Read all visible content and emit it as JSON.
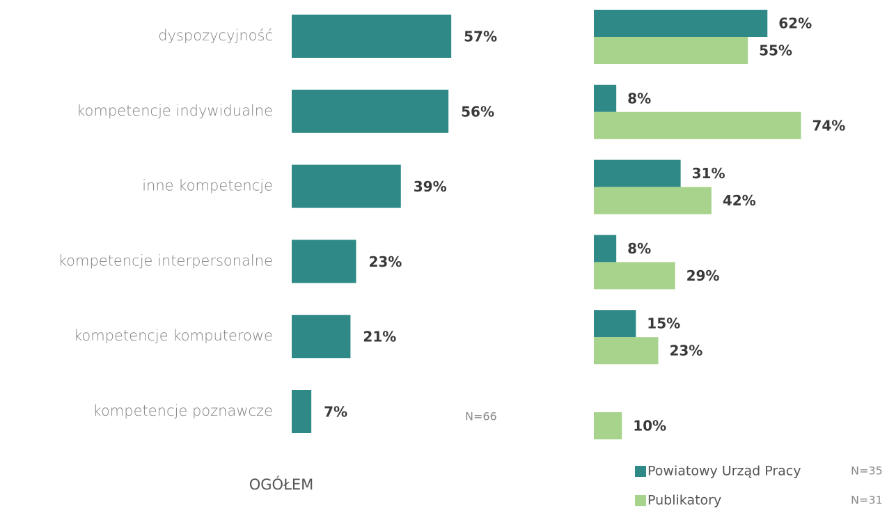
{
  "chart_data": [
    {
      "type": "hbar",
      "categories": [
        "dyspozycyjność",
        "kompetencje indywidualne",
        "inne kompetencje",
        "kompetencje interpersonalne",
        "kompetencje komputerowe",
        "kompetencje poznawcze"
      ],
      "values": [
        57,
        56,
        39,
        23,
        21,
        7
      ],
      "value_labels": [
        "57%",
        "56%",
        "39%",
        "23%",
        "21%",
        "7%"
      ],
      "color": "#2f8a87",
      "xlim": [
        0,
        100
      ],
      "note": "N=66",
      "caption": "OGÓŁEM"
    },
    {
      "type": "grouped-hbar",
      "xlim": [
        0,
        100
      ],
      "series": [
        {
          "name": "Powiatowy Urząd Pracy",
          "color": "#2f8a87",
          "sample": "N=35",
          "values": [
            62,
            8,
            31,
            8,
            15,
            null
          ],
          "value_labels": [
            "62%",
            "8%",
            "31%",
            "8%",
            "15%",
            null
          ]
        },
        {
          "name": "Publikatory",
          "color": "#a8d38c",
          "sample": "N=31",
          "values": [
            55,
            74,
            42,
            29,
            23,
            10
          ],
          "value_labels": [
            "55%",
            "74%",
            "42%",
            "29%",
            "23%",
            "10%"
          ]
        }
      ]
    }
  ]
}
